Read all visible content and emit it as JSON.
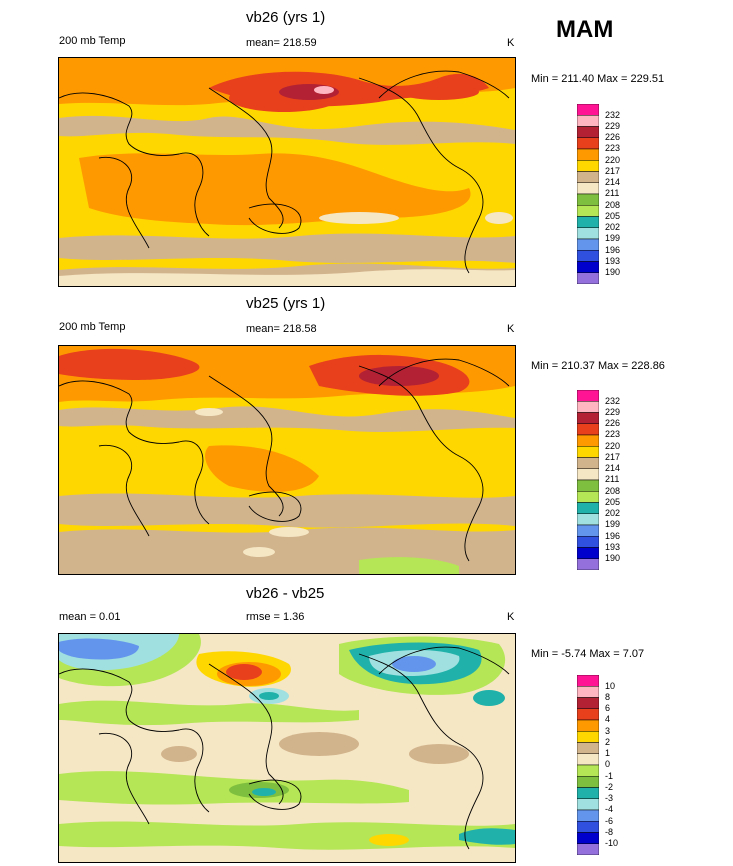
{
  "season": "MAM",
  "panels": [
    {
      "title": "vb26 (yrs 1)",
      "left_label": "200 mb Temp",
      "center_label": "mean= 218.59",
      "units": "K",
      "minmax": "Min = 211.40 Max = 229.51",
      "colorbar": {
        "levels": [
          "232",
          "229",
          "226",
          "223",
          "220",
          "217",
          "214",
          "211",
          "208",
          "205",
          "202",
          "199",
          "196",
          "193",
          "190"
        ],
        "colors": [
          "#ff1493",
          "#ffb6c1",
          "#b22234",
          "#e8401c",
          "#ff9900",
          "#ffd700",
          "#d2b48c",
          "#f5e6c4",
          "#7fbf3f",
          "#b5e655",
          "#20b2aa",
          "#a0e0e0",
          "#6495ed",
          "#3050e0",
          "#0000cd",
          "#9370db"
        ]
      }
    },
    {
      "title": "vb25 (yrs 1)",
      "left_label": "200 mb Temp",
      "center_label": "mean= 218.58",
      "units": "K",
      "minmax": "Min = 210.37 Max = 228.86",
      "colorbar": {
        "levels": [
          "232",
          "229",
          "226",
          "223",
          "220",
          "217",
          "214",
          "211",
          "208",
          "205",
          "202",
          "199",
          "196",
          "193",
          "190"
        ],
        "colors": [
          "#ff1493",
          "#ffb6c1",
          "#b22234",
          "#e8401c",
          "#ff9900",
          "#ffd700",
          "#d2b48c",
          "#f5e6c4",
          "#7fbf3f",
          "#b5e655",
          "#20b2aa",
          "#a0e0e0",
          "#6495ed",
          "#3050e0",
          "#0000cd",
          "#9370db"
        ]
      }
    },
    {
      "title": "vb26 - vb25",
      "left_label": "mean =   0.01",
      "center_label": "rmse =   1.36",
      "units": "K",
      "minmax": "Min = -5.74 Max =   7.07",
      "colorbar": {
        "levels": [
          "10",
          "8",
          "6",
          "4",
          "3",
          "2",
          "1",
          "0",
          "-1",
          "-2",
          "-3",
          "-4",
          "-6",
          "-8",
          "-10"
        ],
        "colors": [
          "#ff1493",
          "#ffb6c1",
          "#b22234",
          "#e8401c",
          "#ff9900",
          "#ffd700",
          "#d2b48c",
          "#f5e6c4",
          "#b5e655",
          "#7fbf3f",
          "#20b2aa",
          "#a0e0e0",
          "#6495ed",
          "#3050e0",
          "#0000cd",
          "#9370db"
        ]
      }
    }
  ]
}
